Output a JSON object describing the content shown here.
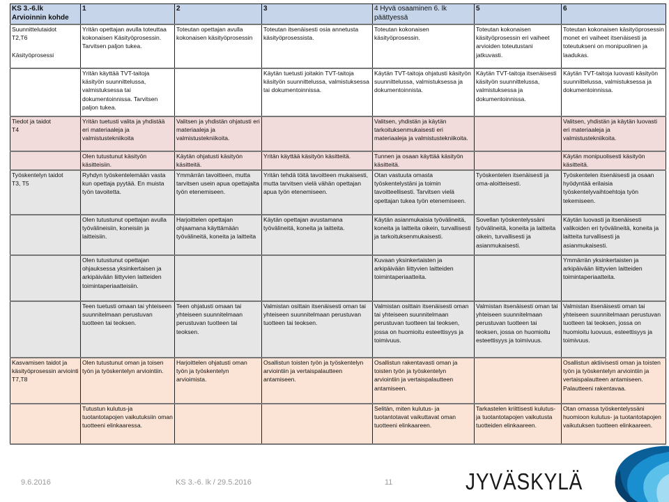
{
  "table": {
    "header": [
      "KS 3.-6.lk\nArvioinnin  kohde",
      "1",
      "2",
      "3",
      "4 Hyvä osaaminen 6. lk päättyessä",
      "5",
      "6"
    ],
    "rows": [
      {
        "group": "blue",
        "h": 63,
        "cells": [
          "Suunnittelutaidot\nT2,T6\n\nKäsityöprosessi",
          "Yritän opettajan avulla toteuttaa kokonaisen Käsityöprosessin. Tarvitsen paljon tukea.",
          "Toteutan opettajan avulla kokonaisen käsityöprosessin",
          "Toteutan itsenäisesti osia annetusta käsityöprosessista.",
          "Toteutan kokonaisen käsityöprosessin.",
          "Toteutan kokonaisen käsityöprosessin eri vaiheet arvioiden toteutustani jatkuvasti.",
          "Toteutan kokonaisen käsityöprosessin monet eri vaiheet itsenäisesti ja toteutukseni on monipuolinen ja laadukas."
        ]
      },
      {
        "group": "blue",
        "h": 69,
        "cells": [
          "",
          "Yritän käyttää TVT-taitoja käsityön suunnittelussa, valmistuksessa tai dokumentoinnissa. Tarvitsen paljon tukea.",
          "",
          "Käytän tuetusti  joitakin TVT-taitoja käsityön suunnittelussa, valmistuksessa tai dokumentoinnissa.",
          "Käytän TVT-taitoja ohjatusti käsityön suunnittelussa, valmistuksessa ja dokumentoinnista.",
          "Käytän TVT-taitoja itsenäisesti käsityön suunnittelussa, valmistuksessa ja dokumentoinnissa.",
          "Käytän TVT-taitoja luovasti käsityön suunnittelussa, valmistuksessa ja dokumentoinnissa."
        ]
      },
      {
        "group": "pink",
        "h": 50,
        "cells": [
          "Tiedot ja taidot\nT4",
          "Yritän tuetusti valita ja yhdistää eri materiaaleja ja valmistustekniikoita",
          "Valitsen ja yhdistän ohjatusti eri materiaaleja ja valmistustekniikoita.",
          "",
          "Valitsen, yhdistän ja käytän tarkoituksenmukaisesti eri materiaaleja ja valmistustekniikoita.",
          "",
          "Valitsen, yhdistän ja käytän luovasti eri materiaaleja ja valmistustekniikoita."
        ]
      },
      {
        "group": "pink",
        "h": 27,
        "cells": [
          "",
          "Olen tutustunut käsityön käsitteisiin.",
          "Käytän ohjatusti käsityön käsitteitä.",
          "Yritän käyttää käsityön käsitteitä.",
          "Tunnen ja osaan käyttää käsityön käsitteitä.",
          "",
          "Käytän monipuolisesti käsityön käsitteitä."
        ]
      },
      {
        "group": "grey",
        "h": 64,
        "cells": [
          "Työskentelyn taidot\nT3, T5",
          "Ryhdyn työskentelemään vasta kun opettaja pyytää. En muista työn tavoitetta.",
          "Ymmärrän tavoitteen, mutta tarvitsen usein apua opettajalta työn etenemiseen.",
          "Yritän tehdä töitä tavoitteen mukaisesti, mutta tarvitsen vielä vähän opettajan apua työn etenemiseen.",
          "Otan vastuuta omasta työskentelystäni ja toimin tavoitteellisesti. Tarvitsen vielä opettajan tukea työn etenemiseen.",
          "Työskentelen itsenäisesti ja oma-aloitteisesti.",
          "Työskentelen itsenäisesti ja osaan hyödyntää erilaisia työskentelyvaihtoehtoja työn tekemiseen."
        ]
      },
      {
        "group": "grey",
        "h": 58,
        "cells": [
          "",
          "Olen tutustunut opettajan avulla työvälineisiin, koneisiin ja laitteisiin.",
          "Harjoittelen opettajan ohjaamana käyttämään työvälineitä, koneita ja laitteita",
          "Käytän opettajan avustamana työvälineitä, koneita ja laitteita.",
          "Käytän asianmukaisia työvälineitä, koneita ja laitteita oikein, turvallisesti ja tarkoituksenmukaisesti.",
          "Sovellan työskentelyssäni työvälineitä, koneita ja laitteita oikein, turvallisesti ja asianmukaisesti.",
          "Käytän luovasti ja itsenäisesti valikoiden eri työvälineitä, koneita ja laitteita turvallisesti ja asianmukaisesti."
        ]
      },
      {
        "group": "grey",
        "h": 66,
        "cells": [
          "",
          "Olen tutustunut opettajan ohjauksessa yksinkertaisen ja arkipäivään liittyvien laitteiden toimintaperiaatteisiin.",
          "",
          "",
          "Kuvaan yksinkertaisten ja arkipäivään liittyvien laitteiden toimintaperiaatteita.",
          "",
          "Ymmärrän yksinkertaisten ja arkipäivään liittyvien laitteiden toimintaperiaatteita."
        ]
      },
      {
        "group": "grey",
        "h": 81,
        "cells": [
          "",
          "Teen tuetusti omaan tai yhteiseen suunnitelmaan perustuvan tuotteen tai teoksen.",
          "Teen ohjatusti omaan tai yhteiseen suunnitelmaan perustuvan tuotteen tai teoksen.",
          "Valmistan osittain itsenäisesti oman tai yhteiseen suunnitelmaan perustuvan tuotteen tai teoksen.",
          "Valmistan osittain itsenäisesti oman tai yhteiseen suunnitelmaan perustuvan tuotteen tai teoksen, jossa on huomioitu esteettisyys ja toimivuus.",
          "Valmistan itsenäisesti oman tai yhteiseen suunnitelmaan perustuvan tuotteen tai teoksen, jossa on huomioitu esteettisyys ja toimivuus.",
          "Valmistan itsenäisesti oman tai yhteiseen suunnitelmaan perustuvan tuotteen tai teoksen, jossa on huomioitu luovuus, esteettisyys ja toimivuus."
        ]
      },
      {
        "group": "peach",
        "h": 66,
        "cells": [
          "Kasvamisen taidot ja käsityöprosessin arviointi\nT7,T8",
          "Olen tutustunut oman ja toisen työn ja työskentelyn arviointiin.",
          "Harjoittelen ohjatusti oman työn ja työskentelyn arvioimista.",
          "Osallistun toisten työn ja työskentelyn arviointiin ja vertaispalautteen antamiseen.",
          "Osallistun rakentavasti oman ja toisten työn ja työskentelyn arviointiin ja vertaispalautteen antamiseen.",
          "",
          "Osallistun aktiivisesti oman ja toisten työn ja työskentelyn arviointiin ja vertaispalautteen antamiseen. Palautteeni rakentavaa."
        ]
      },
      {
        "group": "peach",
        "h": 58,
        "cells": [
          "",
          "Tutustun kulutus-ja tuotantotapojen vaikutuksiin oman tuotteeni elinkaaressa.",
          "",
          "",
          "Selitän, miten kulutus- ja tuotantotavat vaikuttavat oman tuotteeni elinkaareen.",
          "Tarkastelen kriittisesti kulutus- ja tuotantotapojen vaikutusta tuotteiden elinkaareen.",
          "Otan omassa työskentelyssäni huomioon kulutus- ja tuotantotapojen vaikutuksen tuotteen elinkaareen."
        ]
      }
    ]
  },
  "colors": {
    "header": "#c6d5ea",
    "pink": "#f2dcdb",
    "grey": "#e6e6e7",
    "peach": "#fbe4d5"
  },
  "footer": {
    "date": "9.6.2016",
    "center": "KS 3.-6. lk / 29.5.2016",
    "page": "11",
    "logo": "JYVÄSKYLÄ"
  }
}
